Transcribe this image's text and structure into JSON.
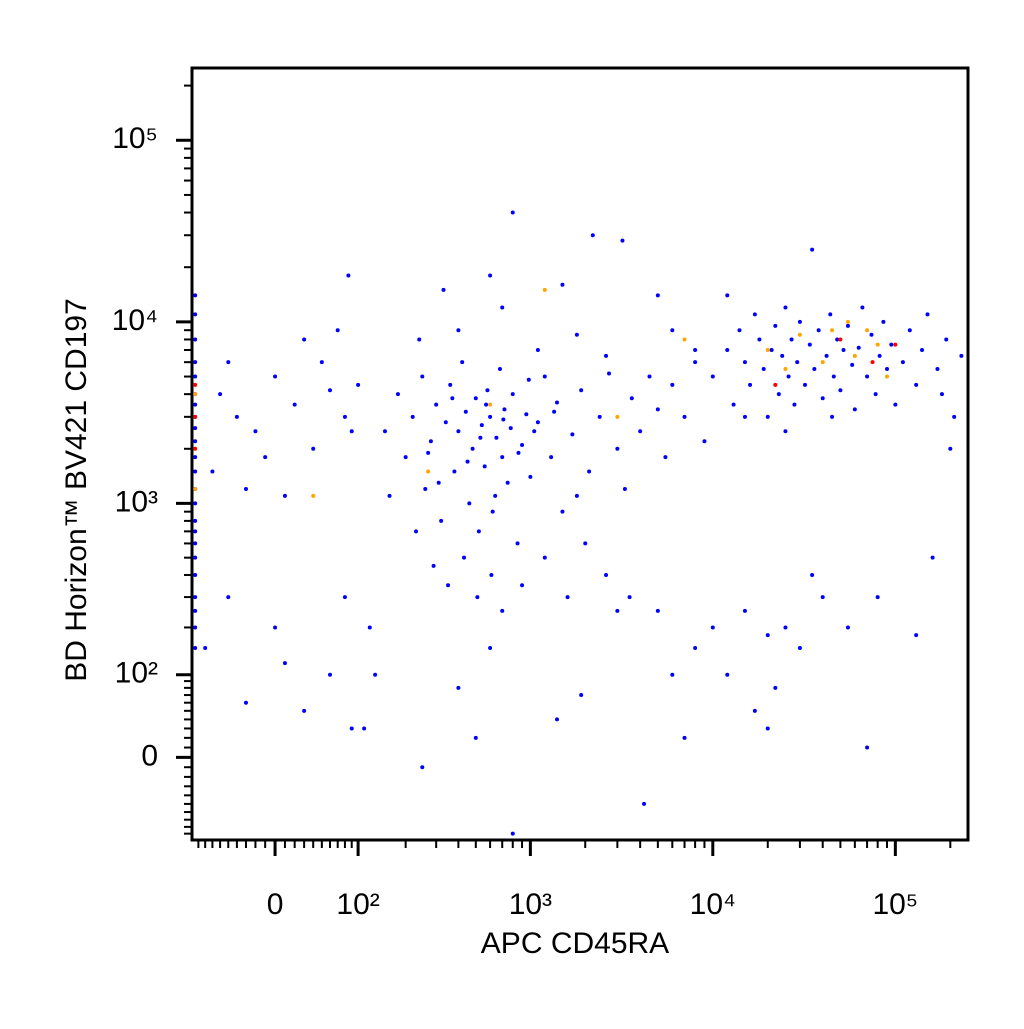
{
  "chart_data": {
    "type": "scatter",
    "x_label": "APC CD45RA",
    "y_label": "BD Horizon™ BV421 CD197",
    "scale": "biexponential",
    "xlim": [
      -100,
      250000
    ],
    "ylim": [
      -100,
      250000
    ],
    "xticks": [
      0,
      {
        "value": 100,
        "label": "10²"
      },
      {
        "value": 1000,
        "label": "10³"
      },
      {
        "value": 10000,
        "label": "10⁴"
      },
      {
        "value": 100000,
        "label": "10⁵"
      }
    ],
    "yticks": [
      0,
      {
        "value": 100,
        "label": "10²"
      },
      {
        "value": 1000,
        "label": "10³"
      },
      {
        "value": 10000,
        "label": "10⁴"
      },
      {
        "value": 100000,
        "label": "10⁵"
      }
    ],
    "xminorticks": [
      -90,
      -80,
      -70,
      -60,
      -50,
      -40,
      -30,
      -20,
      -10,
      10,
      20,
      30,
      40,
      50,
      60,
      70,
      80,
      90,
      200,
      300,
      400,
      500,
      600,
      700,
      800,
      900,
      2000,
      3000,
      4000,
      5000,
      6000,
      7000,
      8000,
      9000,
      20000,
      30000,
      40000,
      50000,
      60000,
      70000,
      80000,
      90000,
      200000
    ],
    "yminorticks": [
      -90,
      -80,
      -70,
      -60,
      -50,
      -40,
      -30,
      -20,
      -10,
      10,
      20,
      30,
      40,
      50,
      60,
      70,
      80,
      90,
      200,
      300,
      400,
      500,
      600,
      700,
      800,
      900,
      2000,
      3000,
      4000,
      5000,
      6000,
      7000,
      8000,
      9000,
      20000,
      30000,
      40000,
      50000,
      60000,
      70000,
      80000,
      90000,
      200000
    ],
    "series": [
      {
        "color": "#0000ff",
        "x": [
          -95,
          -95,
          -95,
          -95,
          -95,
          -95,
          -95,
          -95,
          -95,
          -95,
          -95,
          -95,
          -95,
          -95,
          -95,
          -95,
          -95,
          -95,
          -95,
          -95,
          -95,
          -95,
          -95,
          -60,
          -40,
          -20,
          0,
          20,
          40,
          60,
          80,
          -70,
          -30,
          10,
          50,
          70,
          90,
          -50,
          30,
          -10,
          85,
          100,
          -80,
          -50,
          -30,
          0,
          10,
          30,
          60,
          80,
          90,
          120,
          110,
          130,
          150,
          180,
          200,
          220,
          250,
          260,
          280,
          300,
          320,
          340,
          360,
          380,
          400,
          420,
          440,
          460,
          480,
          500,
          520,
          540,
          560,
          580,
          600,
          620,
          650,
          680,
          700,
          720,
          750,
          780,
          800,
          850,
          900,
          950,
          1000,
          1100,
          1200,
          1300,
          1400,
          1500,
          1700,
          1900,
          2100,
          2400,
          2700,
          3000,
          3300,
          3600,
          4000,
          4500,
          5000,
          5500,
          6000,
          7000,
          8000,
          9000,
          240,
          330,
          600,
          800,
          2200,
          3200,
          1500,
          700,
          400,
          1100,
          1800,
          2600,
          160,
          230,
          290,
          350,
          430,
          510,
          610,
          700,
          900,
          1200,
          1600,
          2000,
          2600,
          3500,
          270,
          310,
          370,
          450,
          530,
          570,
          640,
          710,
          860,
          980,
          1050,
          1350,
          1800,
          250,
          400,
          500,
          600,
          800,
          1400,
          1900,
          3000,
          4200,
          5000,
          6000,
          7000,
          8000,
          10000,
          12000,
          15000,
          17000,
          20000,
          22000,
          25000,
          30000,
          35000,
          40000,
          55000,
          70000,
          80000,
          130000,
          160000,
          20000,
          10000,
          12000,
          13000,
          14000,
          15000,
          16000,
          17000,
          18000,
          19000,
          20000,
          21000,
          22000,
          23000,
          24000,
          25000,
          26000,
          27000,
          28000,
          29000,
          30000,
          32000,
          34000,
          36000,
          38000,
          40000,
          42000,
          44000,
          46000,
          48000,
          50000,
          52000,
          55000,
          58000,
          60000,
          63000,
          66000,
          70000,
          74000,
          78000,
          82000,
          86000,
          90000,
          95000,
          100000,
          110000,
          120000,
          130000,
          140000,
          150000,
          170000,
          190000,
          210000,
          230000,
          200000,
          180000,
          35000,
          12000,
          25000,
          45000,
          15000,
          8000,
          6000,
          5000
        ],
        "y": [
          150,
          200,
          250,
          300,
          400,
          500,
          600,
          700,
          800,
          1000,
          1200,
          1500,
          1800,
          2200,
          2600,
          3000,
          3500,
          4000,
          5000,
          6000,
          8000,
          11000,
          14000,
          4000,
          3000,
          2500,
          5000,
          3500,
          2000,
          4200,
          3000,
          1500,
          1200,
          1100,
          6000,
          9000,
          2500,
          6000,
          8000,
          1800,
          18000,
          4500,
          150,
          300,
          60,
          200,
          120,
          50,
          100,
          300,
          30,
          200,
          30,
          100,
          2500,
          4000,
          1800,
          3000,
          5000,
          1200,
          2200,
          3500,
          800,
          2800,
          4500,
          1500,
          2500,
          6000,
          3200,
          1000,
          2000,
          3800,
          700,
          2700,
          1600,
          4200,
          3000,
          900,
          2300,
          5500,
          1800,
          3300,
          1300,
          2600,
          4000,
          600,
          2100,
          3100,
          1400,
          2800,
          5000,
          1800,
          3600,
          900,
          2400,
          4200,
          1500,
          3000,
          5200,
          2000,
          1200,
          3800,
          2500,
          5000,
          3300,
          1800,
          4500,
          3000,
          6000,
          2200,
          8000,
          15000,
          18000,
          40000,
          30000,
          28000,
          16000,
          12000,
          9000,
          7000,
          8500,
          6500,
          1100,
          700,
          450,
          350,
          500,
          300,
          400,
          250,
          350,
          500,
          300,
          600,
          400,
          300,
          1900,
          1300,
          3800,
          1700,
          2300,
          3500,
          1100,
          2900,
          1900,
          4800,
          2500,
          3200,
          1100,
          -10,
          80,
          20,
          150,
          -90,
          40,
          70,
          250,
          -50,
          250,
          100,
          20,
          150,
          200,
          100,
          250,
          50,
          180,
          80,
          200,
          150,
          400,
          300,
          200,
          10,
          300,
          180,
          500,
          30,
          5000,
          7000,
          3500,
          9000,
          6000,
          4500,
          11000,
          8000,
          5500,
          3000,
          7000,
          9500,
          4000,
          6500,
          12000,
          5000,
          8000,
          3500,
          6000,
          10000,
          4500,
          7500,
          5500,
          9000,
          3800,
          6500,
          11000,
          5000,
          8000,
          4200,
          7000,
          9500,
          5800,
          3300,
          7200,
          12000,
          5000,
          8500,
          4000,
          6500,
          10000,
          5500,
          7500,
          3500,
          6000,
          9000,
          4500,
          7000,
          11000,
          5500,
          8000,
          3000,
          6500,
          2000,
          4000,
          25000,
          14000,
          2500,
          3000,
          3000,
          7000,
          9000,
          14000
        ]
      },
      {
        "color": "#ffa500",
        "x": [
          20000,
          30000,
          45000,
          60000,
          80000,
          25000,
          55000,
          70000,
          600,
          3000,
          7000,
          -95,
          -95,
          40,
          270,
          1200,
          90000,
          40000
        ],
        "y": [
          7000,
          8500,
          9000,
          6500,
          7500,
          5500,
          10000,
          9000,
          3500,
          3000,
          8000,
          1200,
          4000,
          1100,
          1500,
          15000,
          5000,
          6000
        ]
      },
      {
        "color": "#ff0000",
        "x": [
          -95,
          -95,
          -95,
          22000,
          50000,
          75000,
          100000
        ],
        "y": [
          2000,
          3000,
          4500,
          4500,
          8000,
          6000,
          7500
        ]
      }
    ]
  }
}
